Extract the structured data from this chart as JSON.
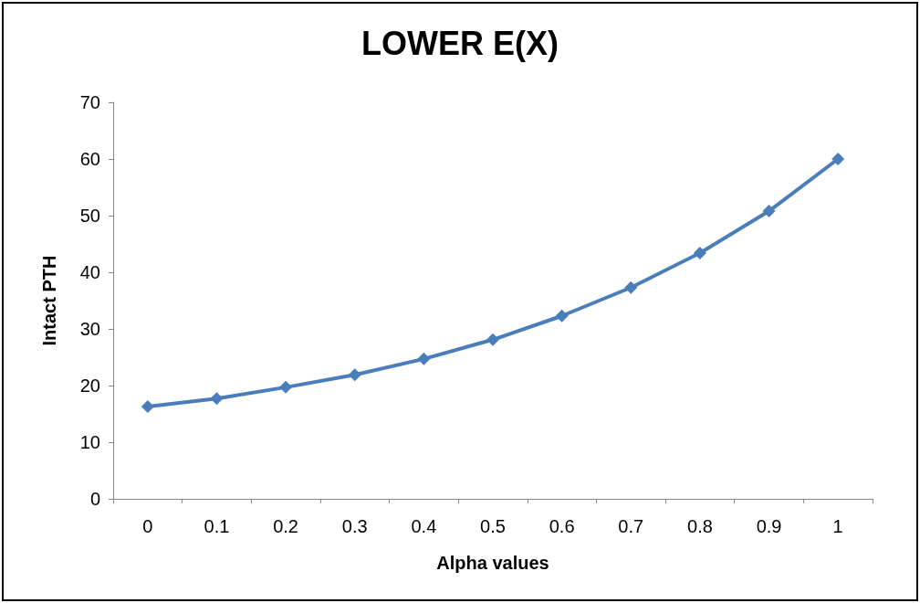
{
  "chart_data": {
    "type": "line",
    "title": "LOWER E(X)",
    "xlabel": "Alpha values",
    "ylabel": "Intact PTH",
    "categories": [
      "0",
      "0.1",
      "0.2",
      "0.3",
      "0.4",
      "0.5",
      "0.6",
      "0.7",
      "0.8",
      "0.9",
      "1"
    ],
    "series": [
      {
        "color": "#4a7ebb",
        "values": [
          16.3,
          17.7,
          19.7,
          21.9,
          24.7,
          28.1,
          32.3,
          37.3,
          43.4,
          50.8,
          60.0
        ]
      }
    ],
    "ylim": [
      0,
      70
    ],
    "yticks": [
      0,
      10,
      20,
      30,
      40,
      50,
      60,
      70
    ],
    "grid": false,
    "marker": "diamond",
    "line_style": "solid"
  }
}
